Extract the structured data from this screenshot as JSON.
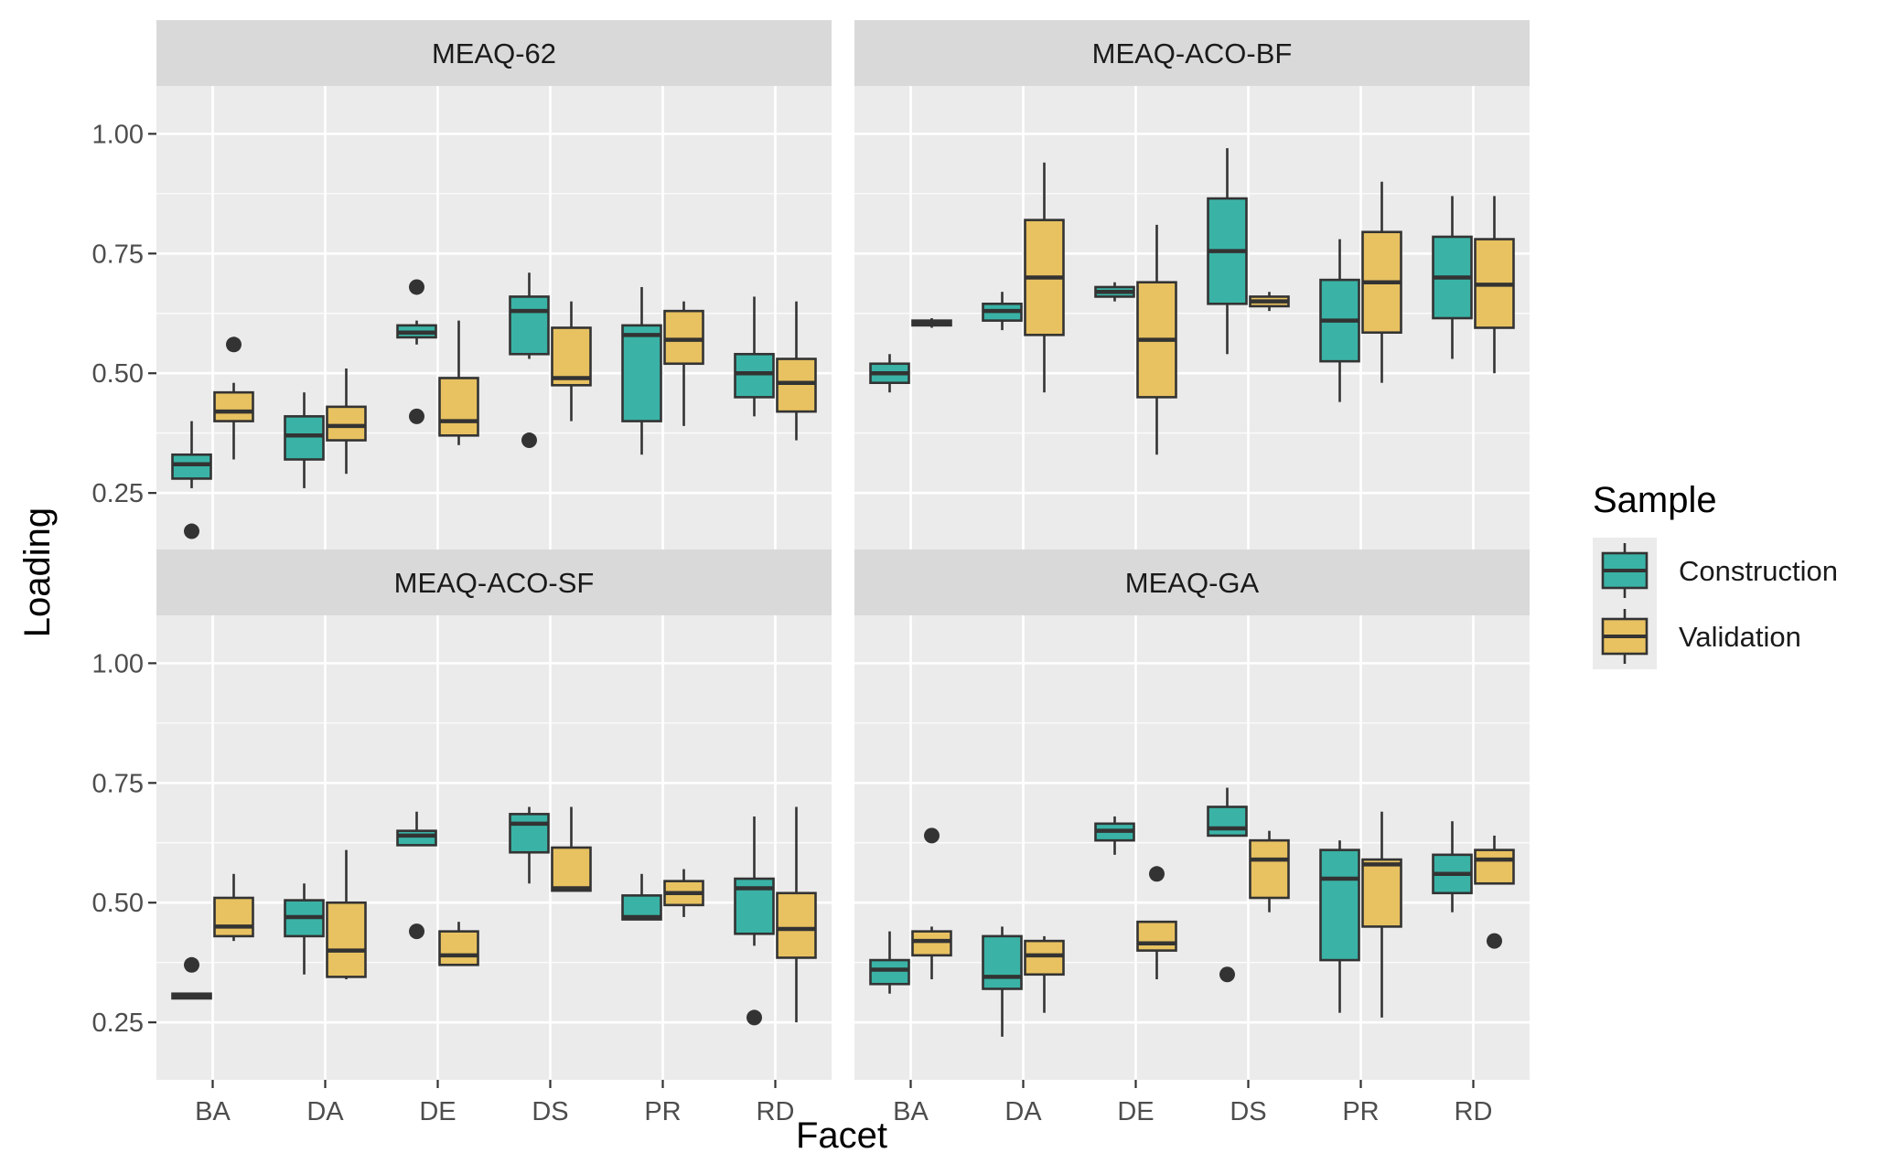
{
  "chart_data": {
    "type": "boxplot",
    "xlabel": "Facet",
    "ylabel": "Loading",
    "categories": [
      "BA",
      "DA",
      "DE",
      "DS",
      "PR",
      "RD"
    ],
    "ylim": [
      0.13,
      1.1
    ],
    "yticks": [
      0.25,
      0.5,
      0.75,
      1.0
    ],
    "ytick_labels": [
      "0.25",
      "0.50",
      "0.75",
      "1.00"
    ],
    "legend": {
      "title": "Sample",
      "position": "right",
      "entries": [
        {
          "name": "Construction",
          "color": "#3AB3A6"
        },
        {
          "name": "Validation",
          "color": "#E8C261"
        }
      ]
    },
    "panels": [
      {
        "title": "MEAQ-62",
        "boxes": {
          "Construction": [
            {
              "lower": 0.26,
              "q1": 0.28,
              "median": 0.31,
              "q3": 0.33,
              "upper": 0.4,
              "outliers": [
                0.17
              ]
            },
            {
              "lower": 0.26,
              "q1": 0.32,
              "median": 0.37,
              "q3": 0.41,
              "upper": 0.46,
              "outliers": []
            },
            {
              "lower": 0.56,
              "q1": 0.575,
              "median": 0.585,
              "q3": 0.6,
              "upper": 0.61,
              "outliers": [
                0.68,
                0.41
              ]
            },
            {
              "lower": 0.53,
              "q1": 0.54,
              "median": 0.63,
              "q3": 0.66,
              "upper": 0.71,
              "outliers": [
                0.36
              ]
            },
            {
              "lower": 0.33,
              "q1": 0.4,
              "median": 0.58,
              "q3": 0.6,
              "upper": 0.68,
              "outliers": []
            },
            {
              "lower": 0.41,
              "q1": 0.45,
              "median": 0.5,
              "q3": 0.54,
              "upper": 0.66,
              "outliers": []
            }
          ],
          "Validation": [
            {
              "lower": 0.32,
              "q1": 0.4,
              "median": 0.42,
              "q3": 0.46,
              "upper": 0.48,
              "outliers": [
                0.56
              ]
            },
            {
              "lower": 0.29,
              "q1": 0.36,
              "median": 0.39,
              "q3": 0.43,
              "upper": 0.51,
              "outliers": []
            },
            {
              "lower": 0.35,
              "q1": 0.37,
              "median": 0.4,
              "q3": 0.49,
              "upper": 0.61,
              "outliers": []
            },
            {
              "lower": 0.4,
              "q1": 0.475,
              "median": 0.49,
              "q3": 0.595,
              "upper": 0.65,
              "outliers": []
            },
            {
              "lower": 0.39,
              "q1": 0.52,
              "median": 0.57,
              "q3": 0.63,
              "upper": 0.65,
              "outliers": []
            },
            {
              "lower": 0.36,
              "q1": 0.42,
              "median": 0.48,
              "q3": 0.53,
              "upper": 0.65,
              "outliers": []
            }
          ]
        }
      },
      {
        "title": "MEAQ-ACO-BF",
        "boxes": {
          "Construction": [
            {
              "lower": 0.46,
              "q1": 0.48,
              "median": 0.5,
              "q3": 0.52,
              "upper": 0.54,
              "outliers": []
            },
            {
              "lower": 0.59,
              "q1": 0.61,
              "median": 0.63,
              "q3": 0.645,
              "upper": 0.67,
              "outliers": []
            },
            {
              "lower": 0.65,
              "q1": 0.66,
              "median": 0.67,
              "q3": 0.68,
              "upper": 0.69,
              "outliers": []
            },
            {
              "lower": 0.54,
              "q1": 0.645,
              "median": 0.755,
              "q3": 0.865,
              "upper": 0.97,
              "outliers": []
            },
            {
              "lower": 0.44,
              "q1": 0.525,
              "median": 0.61,
              "q3": 0.695,
              "upper": 0.78,
              "outliers": []
            },
            {
              "lower": 0.53,
              "q1": 0.615,
              "median": 0.7,
              "q3": 0.785,
              "upper": 0.87,
              "outliers": []
            }
          ],
          "Validation": [
            {
              "lower": 0.595,
              "q1": 0.6,
              "median": 0.605,
              "q3": 0.61,
              "upper": 0.615,
              "outliers": []
            },
            {
              "lower": 0.46,
              "q1": 0.58,
              "median": 0.7,
              "q3": 0.82,
              "upper": 0.94,
              "outliers": []
            },
            {
              "lower": 0.33,
              "q1": 0.45,
              "median": 0.57,
              "q3": 0.69,
              "upper": 0.81,
              "outliers": []
            },
            {
              "lower": 0.63,
              "q1": 0.64,
              "median": 0.65,
              "q3": 0.66,
              "upper": 0.67,
              "outliers": []
            },
            {
              "lower": 0.48,
              "q1": 0.585,
              "median": 0.69,
              "q3": 0.795,
              "upper": 0.9,
              "outliers": []
            },
            {
              "lower": 0.5,
              "q1": 0.595,
              "median": 0.685,
              "q3": 0.78,
              "upper": 0.87,
              "outliers": []
            }
          ]
        }
      },
      {
        "title": "MEAQ-ACO-SF",
        "boxes": {
          "Construction": [
            {
              "lower": 0.3,
              "q1": 0.3,
              "median": 0.305,
              "q3": 0.31,
              "upper": 0.31,
              "outliers": [
                0.37
              ]
            },
            {
              "lower": 0.35,
              "q1": 0.43,
              "median": 0.47,
              "q3": 0.505,
              "upper": 0.54,
              "outliers": []
            },
            {
              "lower": 0.62,
              "q1": 0.62,
              "median": 0.64,
              "q3": 0.65,
              "upper": 0.69,
              "outliers": [
                0.44
              ]
            },
            {
              "lower": 0.54,
              "q1": 0.605,
              "median": 0.665,
              "q3": 0.685,
              "upper": 0.7,
              "outliers": []
            },
            {
              "lower": 0.465,
              "q1": 0.465,
              "median": 0.47,
              "q3": 0.515,
              "upper": 0.56,
              "outliers": []
            },
            {
              "lower": 0.41,
              "q1": 0.435,
              "median": 0.53,
              "q3": 0.55,
              "upper": 0.68,
              "outliers": [
                0.26
              ]
            }
          ],
          "Validation": [
            {
              "lower": 0.42,
              "q1": 0.43,
              "median": 0.45,
              "q3": 0.51,
              "upper": 0.56,
              "outliers": []
            },
            {
              "lower": 0.34,
              "q1": 0.345,
              "median": 0.4,
              "q3": 0.5,
              "upper": 0.61,
              "outliers": []
            },
            {
              "lower": 0.37,
              "q1": 0.37,
              "median": 0.39,
              "q3": 0.44,
              "upper": 0.46,
              "outliers": []
            },
            {
              "lower": 0.525,
              "q1": 0.525,
              "median": 0.53,
              "q3": 0.615,
              "upper": 0.7,
              "outliers": []
            },
            {
              "lower": 0.47,
              "q1": 0.495,
              "median": 0.52,
              "q3": 0.545,
              "upper": 0.57,
              "outliers": []
            },
            {
              "lower": 0.25,
              "q1": 0.385,
              "median": 0.445,
              "q3": 0.52,
              "upper": 0.7,
              "outliers": []
            }
          ]
        }
      },
      {
        "title": "MEAQ-GA",
        "boxes": {
          "Construction": [
            {
              "lower": 0.31,
              "q1": 0.33,
              "median": 0.36,
              "q3": 0.38,
              "upper": 0.44,
              "outliers": []
            },
            {
              "lower": 0.22,
              "q1": 0.32,
              "median": 0.345,
              "q3": 0.43,
              "upper": 0.45,
              "outliers": []
            },
            {
              "lower": 0.6,
              "q1": 0.63,
              "median": 0.65,
              "q3": 0.665,
              "upper": 0.68,
              "outliers": []
            },
            {
              "lower": 0.64,
              "q1": 0.64,
              "median": 0.655,
              "q3": 0.7,
              "upper": 0.74,
              "outliers": [
                0.35
              ]
            },
            {
              "lower": 0.27,
              "q1": 0.38,
              "median": 0.55,
              "q3": 0.61,
              "upper": 0.63,
              "outliers": []
            },
            {
              "lower": 0.48,
              "q1": 0.52,
              "median": 0.56,
              "q3": 0.6,
              "upper": 0.67,
              "outliers": []
            }
          ],
          "Validation": [
            {
              "lower": 0.34,
              "q1": 0.39,
              "median": 0.42,
              "q3": 0.44,
              "upper": 0.45,
              "outliers": [
                0.64
              ]
            },
            {
              "lower": 0.27,
              "q1": 0.35,
              "median": 0.39,
              "q3": 0.42,
              "upper": 0.43,
              "outliers": []
            },
            {
              "lower": 0.34,
              "q1": 0.4,
              "median": 0.415,
              "q3": 0.46,
              "upper": 0.46,
              "outliers": [
                0.56
              ]
            },
            {
              "lower": 0.48,
              "q1": 0.51,
              "median": 0.59,
              "q3": 0.63,
              "upper": 0.65,
              "outliers": []
            },
            {
              "lower": 0.26,
              "q1": 0.45,
              "median": 0.58,
              "q3": 0.59,
              "upper": 0.69,
              "outliers": []
            },
            {
              "lower": 0.54,
              "q1": 0.54,
              "median": 0.59,
              "q3": 0.61,
              "upper": 0.64,
              "outliers": [
                0.42
              ]
            }
          ]
        }
      }
    ]
  }
}
